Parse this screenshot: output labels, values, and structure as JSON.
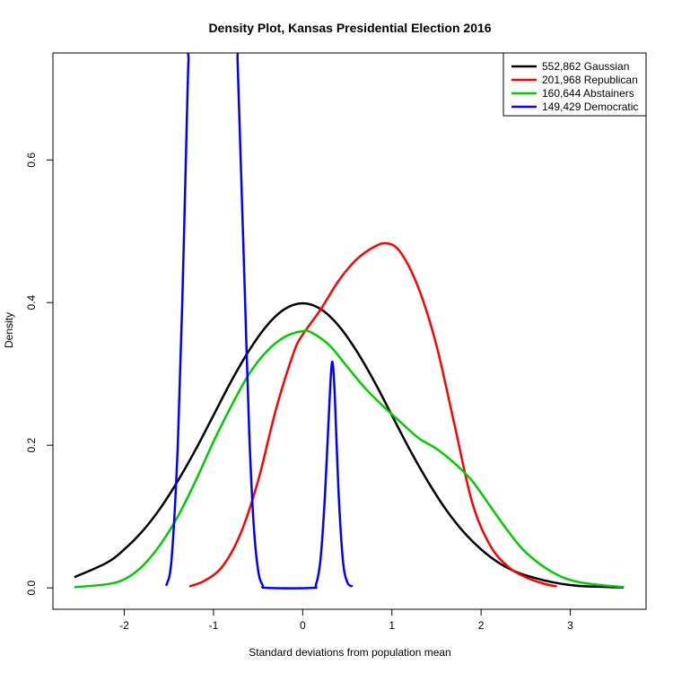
{
  "chart_data": {
    "type": "line",
    "title": "Density Plot, Kansas Presidential Election 2016",
    "xlabel": "Standard deviations from population mean",
    "ylabel": "Density",
    "xlim": [
      -2.8,
      3.85
    ],
    "ylim": [
      -0.03,
      0.75
    ],
    "x_ticks": [
      -2,
      -1,
      0,
      1,
      2,
      3
    ],
    "x_tick_labels": [
      "-2",
      "-1",
      "0",
      "1",
      "2",
      "3"
    ],
    "y_ticks": [
      0.0,
      0.2,
      0.4,
      0.6
    ],
    "y_tick_labels": [
      "0.0",
      "0.2",
      "0.4",
      "0.6"
    ],
    "grid": false,
    "legend_position": "top-right",
    "series": [
      {
        "name": "552,862 Gaussian",
        "color": "#000000",
        "x": [
          -2.56,
          -2.2,
          -2.0,
          -1.8,
          -1.6,
          -1.4,
          -1.2,
          -1.0,
          -0.8,
          -0.6,
          -0.4,
          -0.2,
          0.0,
          0.2,
          0.4,
          0.6,
          0.8,
          1.0,
          1.2,
          1.4,
          1.6,
          1.8,
          2.0,
          2.2,
          2.4,
          2.6,
          2.8,
          3.0,
          3.2,
          3.6
        ],
        "y": [
          0.015,
          0.035,
          0.054,
          0.079,
          0.111,
          0.15,
          0.194,
          0.242,
          0.29,
          0.333,
          0.368,
          0.391,
          0.399,
          0.391,
          0.368,
          0.333,
          0.29,
          0.242,
          0.194,
          0.15,
          0.111,
          0.079,
          0.054,
          0.035,
          0.022,
          0.014,
          0.008,
          0.004,
          0.002,
          0.0005
        ]
      },
      {
        "name": "201,968 Republican",
        "color": "#ff0000",
        "x": [
          -1.27,
          -1.1,
          -0.9,
          -0.7,
          -0.5,
          -0.3,
          -0.1,
          0.0,
          0.2,
          0.4,
          0.6,
          0.8,
          0.95,
          1.1,
          1.3,
          1.5,
          1.7,
          1.9,
          2.1,
          2.3,
          2.5,
          2.7,
          2.85
        ],
        "y": [
          0.002,
          0.01,
          0.03,
          0.075,
          0.15,
          0.25,
          0.33,
          0.355,
          0.39,
          0.43,
          0.46,
          0.478,
          0.483,
          0.47,
          0.42,
          0.34,
          0.23,
          0.12,
          0.06,
          0.03,
          0.015,
          0.006,
          0.002
        ]
      },
      {
        "name": "160,644 Abstainers",
        "color": "#00cd00",
        "x": [
          -2.56,
          -2.2,
          -2.0,
          -1.8,
          -1.6,
          -1.4,
          -1.2,
          -1.0,
          -0.8,
          -0.6,
          -0.4,
          -0.2,
          0.0,
          0.1,
          0.3,
          0.5,
          0.7,
          0.9,
          1.1,
          1.3,
          1.5,
          1.7,
          1.9,
          2.1,
          2.3,
          2.5,
          2.8,
          3.1,
          3.6
        ],
        "y": [
          0.001,
          0.005,
          0.012,
          0.03,
          0.06,
          0.1,
          0.15,
          0.205,
          0.255,
          0.3,
          0.332,
          0.352,
          0.36,
          0.358,
          0.34,
          0.31,
          0.28,
          0.255,
          0.232,
          0.21,
          0.195,
          0.175,
          0.15,
          0.115,
          0.08,
          0.05,
          0.022,
          0.008,
          0.001
        ]
      },
      {
        "name": "149,429 Democratic",
        "color": "#0000ff",
        "x": [
          -1.53,
          -1.47,
          -1.4,
          -1.35,
          -1.3,
          -1.28,
          -1.26,
          -0.75,
          -0.73,
          -0.7,
          -0.65,
          -0.6,
          -0.55,
          -0.5,
          -0.45,
          -0.4,
          0.1,
          0.15,
          0.2,
          0.25,
          0.3,
          0.33,
          0.36,
          0.4,
          0.45,
          0.5,
          0.56
        ],
        "y": [
          0.003,
          0.04,
          0.2,
          0.4,
          0.65,
          0.74,
          0.76,
          0.76,
          0.74,
          0.62,
          0.42,
          0.22,
          0.09,
          0.025,
          0.004,
          0.0,
          0.0,
          0.005,
          0.04,
          0.13,
          0.26,
          0.317,
          0.27,
          0.14,
          0.04,
          0.008,
          0.002
        ]
      }
    ]
  }
}
